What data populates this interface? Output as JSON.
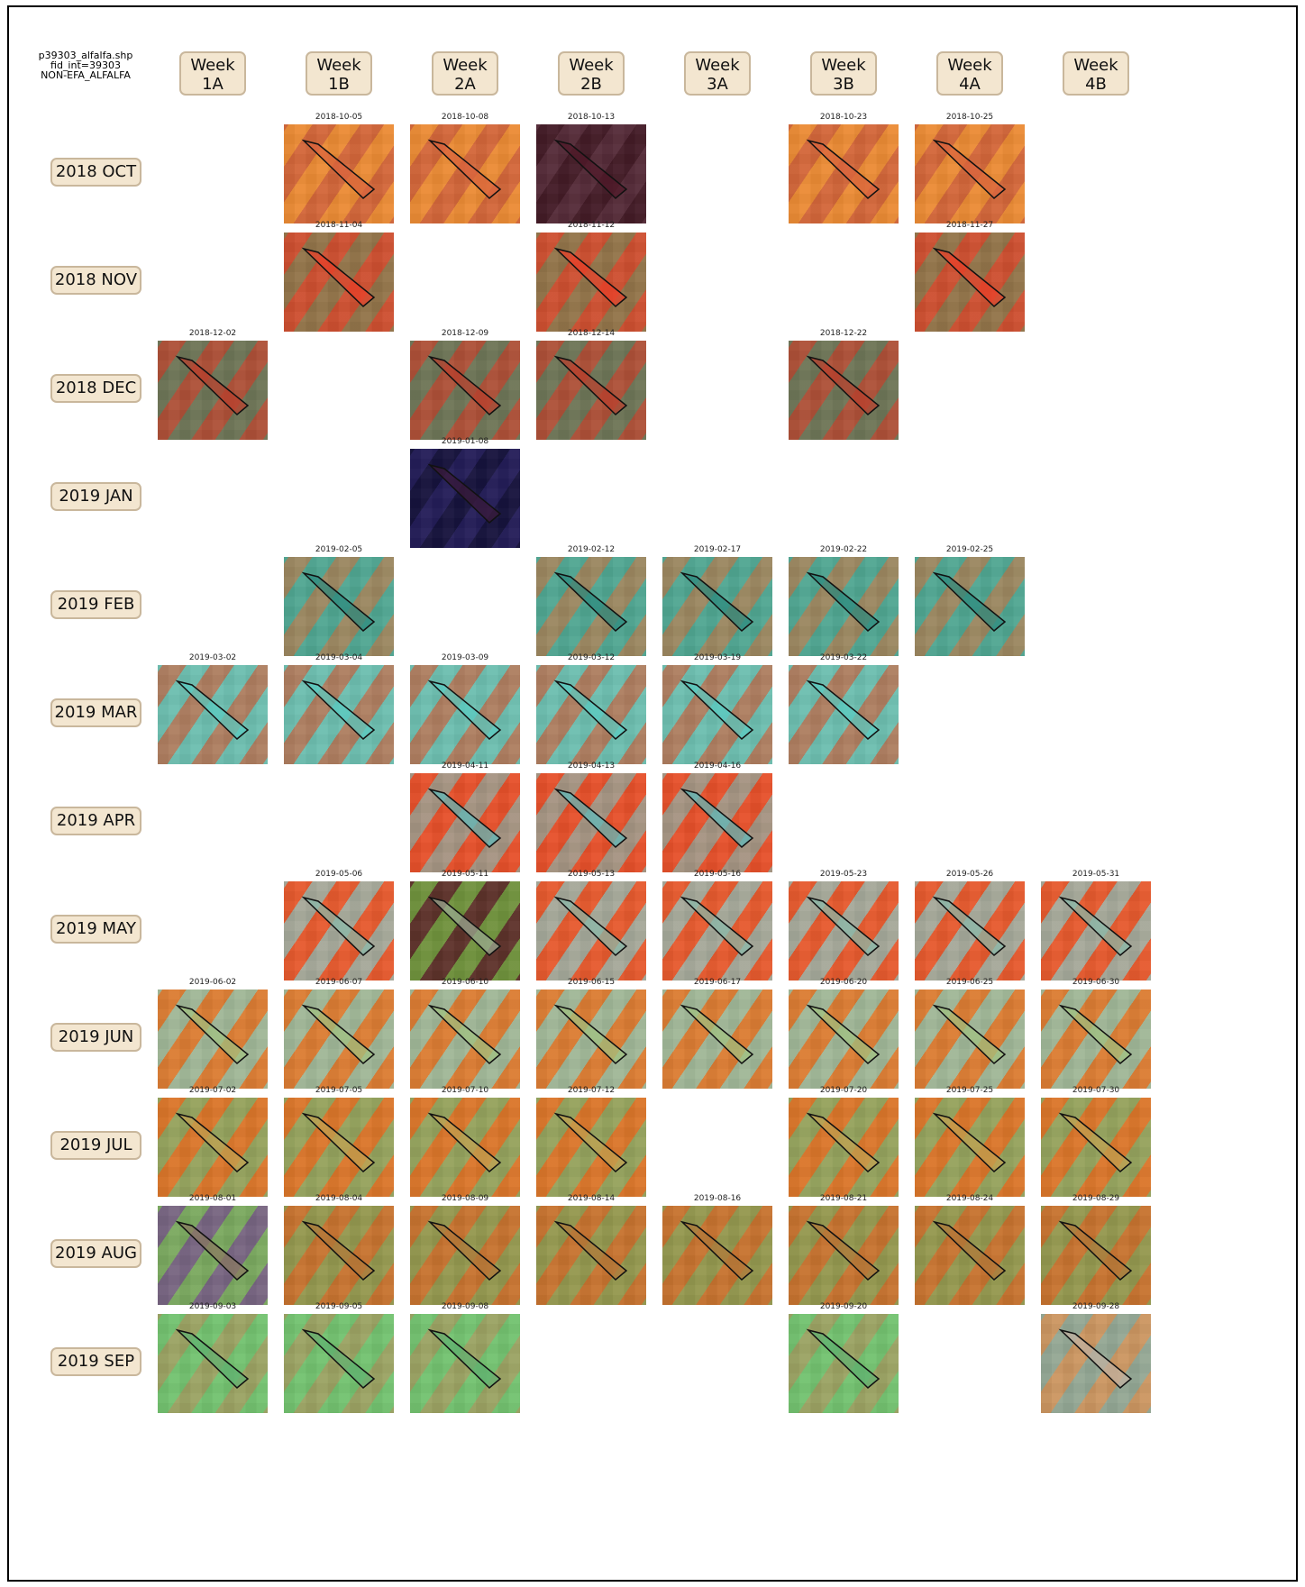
{
  "header": {
    "file_line1": "p39303_alfalfa.shp",
    "file_line2": "fid_int=39303",
    "file_line3": "NON-EFA_ALFALFA"
  },
  "weeks": [
    {
      "line1": "Week",
      "line2": "1A"
    },
    {
      "line1": "Week",
      "line2": "1B"
    },
    {
      "line1": "Week",
      "line2": "2A"
    },
    {
      "line1": "Week",
      "line2": "2B"
    },
    {
      "line1": "Week",
      "line2": "3A"
    },
    {
      "line1": "Week",
      "line2": "3B"
    },
    {
      "line1": "Week",
      "line2": "4A"
    },
    {
      "line1": "Week",
      "line2": "4B"
    }
  ],
  "months": [
    {
      "label": "2018 OCT",
      "images": [
        null,
        "2018-10-05",
        "2018-10-08",
        "2018-10-13",
        null,
        "2018-10-23",
        "2018-10-25",
        null
      ]
    },
    {
      "label": "2018 NOV",
      "images": [
        null,
        "2018-11-04",
        null,
        "2018-11-12",
        null,
        null,
        "2018-11-27",
        null
      ]
    },
    {
      "label": "2018 DEC",
      "images": [
        "2018-12-02",
        null,
        "2018-12-09",
        "2018-12-14",
        null,
        "2018-12-22",
        null,
        null
      ]
    },
    {
      "label": "2019 JAN",
      "images": [
        null,
        null,
        "2019-01-08",
        null,
        null,
        null,
        null,
        null
      ]
    },
    {
      "label": "2019 FEB",
      "images": [
        null,
        "2019-02-05",
        null,
        "2019-02-12",
        "2019-02-17",
        "2019-02-22",
        "2019-02-25",
        null
      ]
    },
    {
      "label": "2019 MAR",
      "images": [
        "2019-03-02",
        "2019-03-04",
        "2019-03-09",
        "2019-03-12",
        "2019-03-19",
        "2019-03-22",
        null,
        null
      ]
    },
    {
      "label": "2019 APR",
      "images": [
        null,
        null,
        "2019-04-11",
        "2019-04-13",
        "2019-04-16",
        null,
        null,
        null
      ]
    },
    {
      "label": "2019 MAY",
      "images": [
        null,
        "2019-05-06",
        "2019-05-11",
        "2019-05-13",
        "2019-05-16",
        "2019-05-23",
        "2019-05-26",
        "2019-05-31"
      ]
    },
    {
      "label": "2019 JUN",
      "images": [
        "2019-06-02",
        "2019-06-07",
        "2019-06-10",
        "2019-06-15",
        "2019-06-17",
        "2019-06-20",
        "2019-06-25",
        "2019-06-30"
      ]
    },
    {
      "label": "2019 JUL",
      "images": [
        "2019-07-02",
        "2019-07-05",
        "2019-07-10",
        "2019-07-12",
        null,
        "2019-07-20",
        "2019-07-25",
        "2019-07-30"
      ]
    },
    {
      "label": "2019 AUG",
      "images": [
        "2019-08-01",
        "2019-08-04",
        "2019-08-09",
        "2019-08-14",
        "2019-08-16",
        "2019-08-21",
        "2019-08-24",
        "2019-08-29"
      ]
    },
    {
      "label": "2019 SEP",
      "images": [
        "2019-09-03",
        "2019-09-05",
        "2019-09-08",
        null,
        null,
        "2019-09-20",
        null,
        "2019-09-28"
      ]
    }
  ],
  "palettes": {
    "2018 OCT": {
      "bg": "#e0783a",
      "s1": "#f39a32",
      "s2": "#c95a3a",
      "field": "#d9643e"
    },
    "2018 NOV": {
      "bg": "#b4573a",
      "s1": "#e04a2a",
      "s2": "#7a8a55",
      "field": "#e8402a"
    },
    "2018 DEC": {
      "bg": "#8a5a40",
      "s1": "#c84a32",
      "s2": "#5a8a68",
      "field": "#b8402e"
    },
    "2019 JAN": {
      "bg": "#1c1a4e",
      "s1": "#2a2060",
      "s2": "#120e30",
      "field": "#3a1a3a"
    },
    "2019 FEB": {
      "bg": "#5a9a80",
      "s1": "#cc7a4a",
      "s2": "#4ab0a0",
      "field": "#2e8a7e"
    },
    "2019 MAR": {
      "bg": "#6aa890",
      "s1": "#e0603e",
      "s2": "#70d0c8",
      "field": "#5acac0"
    },
    "2019 APR": {
      "bg": "#d85a3a",
      "s1": "#f04a20",
      "s2": "#80c0b8",
      "field": "#60b8b8"
    },
    "2019 MAY": {
      "bg": "#d8683a",
      "s1": "#f05026",
      "s2": "#80d8e0",
      "field": "#8ab8a8"
    },
    "2019 JUN": {
      "bg": "#c08040",
      "s1": "#f07a2a",
      "s2": "#8ae0d8",
      "field": "#a0c080"
    },
    "2019 JUL": {
      "bg": "#c8702e",
      "s1": "#e87a28",
      "s2": "#70c880",
      "field": "#c0a050"
    },
    "2019 AUG": {
      "bg": "#b07838",
      "s1": "#d8702a",
      "s2": "#80b060",
      "field": "#b0783a"
    },
    "2019 SEP": {
      "bg": "#6ab070",
      "s1": "#7ad070",
      "s2": "#c09a5a",
      "field": "#60b070"
    }
  },
  "special": {
    "2018-10-13": {
      "bg": "#3a1822",
      "s1": "#4a1e2a",
      "s2": "#6a3a4a",
      "field": "#501a2a"
    },
    "2019-05-11": {
      "bg": "#c86a3a",
      "s1": "#30b040",
      "s2": "#100a20",
      "field": "#9aa890"
    },
    "2019-09-28": {
      "bg": "#b0a890",
      "s1": "#e08a40",
      "s2": "#80a898",
      "field": "#c0b0a0"
    },
    "2019-08-01": {
      "bg": "#8a8a60",
      "s1": "#6a4a9a",
      "s2": "#70c060",
      "field": "#8a7a60"
    }
  }
}
